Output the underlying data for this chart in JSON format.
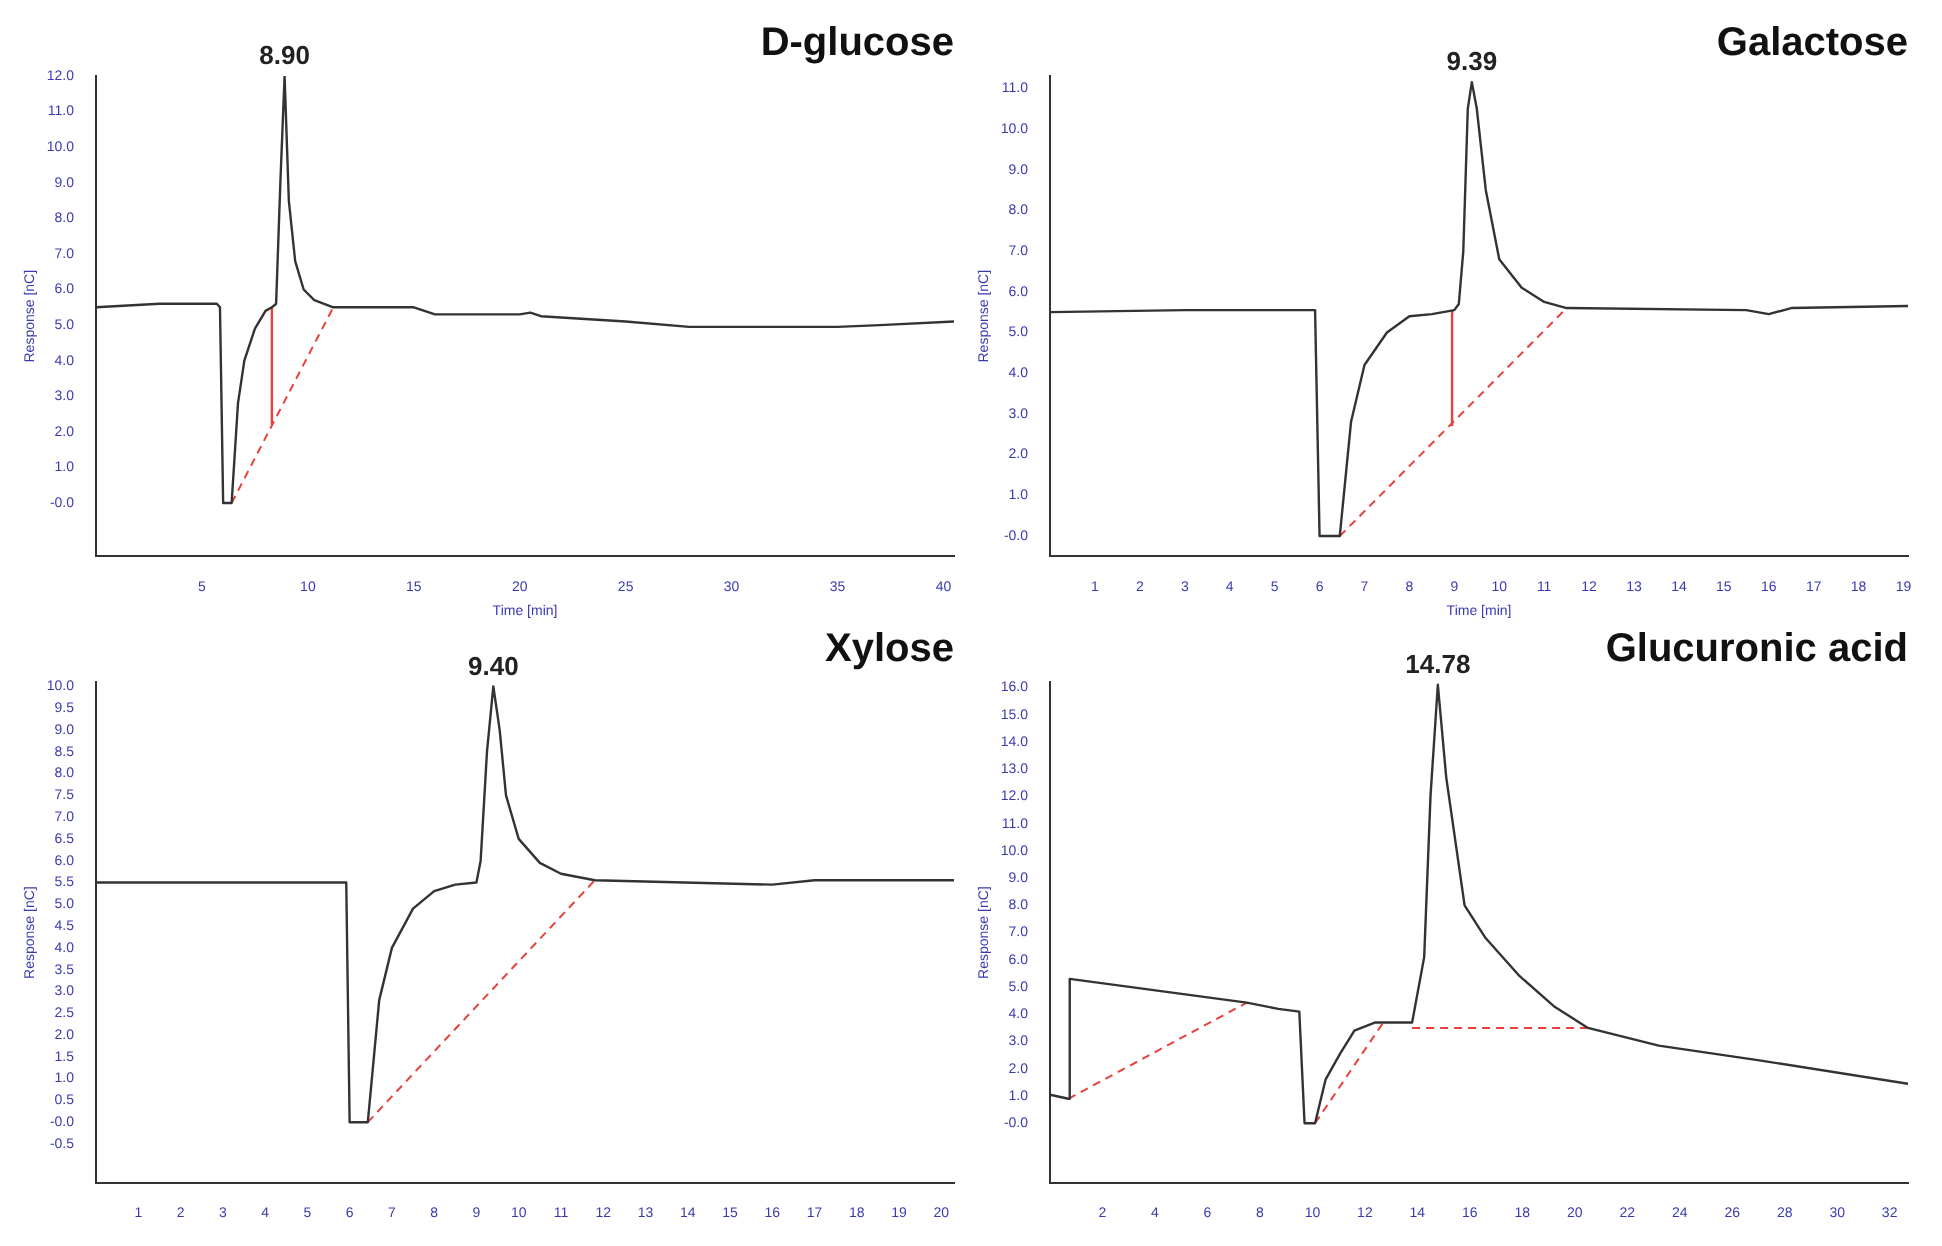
{
  "chart_data": [
    {
      "type": "line",
      "title": "D-glucose",
      "xlabel": "Time [min]",
      "ylabel": "Response [nC]",
      "legend": false,
      "grid": false,
      "marker": "none",
      "xlim": [
        0,
        40.5
      ],
      "ylim": [
        -1.5,
        12
      ],
      "xticks": [
        5,
        10,
        15,
        20,
        25,
        30,
        35,
        40
      ],
      "yticks": [
        {
          "value": 0,
          "label": "-0.0"
        },
        {
          "value": 1,
          "label": "1.0"
        },
        {
          "value": 2,
          "label": "2.0"
        },
        {
          "value": 3,
          "label": "3.0"
        },
        {
          "value": 4,
          "label": "4.0"
        },
        {
          "value": 5,
          "label": "5.0"
        },
        {
          "value": 6,
          "label": "6.0"
        },
        {
          "value": 7,
          "label": "7.0"
        },
        {
          "value": 8,
          "label": "8.0"
        },
        {
          "value": 9,
          "label": "9.0"
        },
        {
          "value": 10,
          "label": "10.0"
        },
        {
          "value": 11,
          "label": "11.0"
        },
        {
          "value": 12,
          "label": "12.0"
        }
      ],
      "annotations": [
        {
          "text": "8.90",
          "x": 8.9,
          "y": 12
        }
      ],
      "series": [
        {
          "color": "#333333",
          "line_style": "solid",
          "x": [
            0,
            3,
            5.7,
            5.85,
            6.0,
            6.4,
            6.7,
            7.0,
            7.5,
            8.0,
            8.3,
            8.5,
            8.7,
            8.9,
            9.1,
            9.4,
            9.8,
            10.3,
            11.2,
            15,
            16,
            20,
            20.5,
            21,
            25,
            28,
            32,
            35,
            37,
            40.5
          ],
          "values": [
            5.5,
            5.6,
            5.6,
            5.5,
            0,
            0,
            2.8,
            4.0,
            4.9,
            5.4,
            5.5,
            5.6,
            9,
            12,
            8.5,
            6.8,
            6.0,
            5.7,
            5.5,
            5.5,
            5.3,
            5.3,
            5.35,
            5.25,
            5.1,
            4.95,
            4.95,
            4.95,
            5.0,
            5.1
          ]
        },
        {
          "color": "#e8413c",
          "line_style": "dashed",
          "x": [
            6.4,
            11.2
          ],
          "values": [
            0,
            5.5
          ]
        },
        {
          "color": "#e8413c",
          "line_style": "solid",
          "x": [
            8.3,
            8.3
          ],
          "values": [
            2.2,
            5.5
          ]
        }
      ]
    },
    {
      "type": "line",
      "title": "Galactose",
      "xlabel": "Time [min]",
      "ylabel": "Response [nC]",
      "legend": false,
      "grid": false,
      "marker": "none",
      "xlim": [
        0,
        19.1
      ],
      "ylim": [
        -0.5,
        11.3
      ],
      "xticks": [
        1,
        2,
        3,
        4,
        5,
        6,
        7,
        8,
        9,
        10,
        11,
        12,
        13,
        14,
        15,
        16,
        17,
        18,
        19
      ],
      "yticks": [
        {
          "value": 0,
          "label": "-0.0"
        },
        {
          "value": 1,
          "label": "1.0"
        },
        {
          "value": 2,
          "label": "2.0"
        },
        {
          "value": 3,
          "label": "3.0"
        },
        {
          "value": 4,
          "label": "4.0"
        },
        {
          "value": 5,
          "label": "5.0"
        },
        {
          "value": 6,
          "label": "6.0"
        },
        {
          "value": 7,
          "label": "7.0"
        },
        {
          "value": 8,
          "label": "8.0"
        },
        {
          "value": 9,
          "label": "9.0"
        },
        {
          "value": 10,
          "label": "10.0"
        },
        {
          "value": 11,
          "label": "11.0"
        }
      ],
      "annotations": [
        {
          "text": "9.39",
          "x": 9.39,
          "y": 11.15
        }
      ],
      "series": [
        {
          "color": "#333333",
          "line_style": "solid",
          "x": [
            0,
            3,
            5.9,
            6.0,
            6.45,
            6.7,
            7.0,
            7.5,
            8.0,
            8.5,
            9.0,
            9.1,
            9.2,
            9.3,
            9.39,
            9.5,
            9.7,
            10.0,
            10.5,
            11.0,
            11.5,
            15.5,
            16,
            16.5,
            19.1
          ],
          "values": [
            5.5,
            5.55,
            5.55,
            0,
            0,
            2.8,
            4.2,
            5.0,
            5.4,
            5.45,
            5.55,
            5.7,
            7.0,
            10.5,
            11.15,
            10.5,
            8.5,
            6.8,
            6.1,
            5.75,
            5.6,
            5.55,
            5.45,
            5.6,
            5.65
          ]
        },
        {
          "color": "#e8413c",
          "line_style": "dashed",
          "x": [
            6.45,
            11.5
          ],
          "values": [
            0,
            5.6
          ]
        },
        {
          "color": "#e8413c",
          "line_style": "solid",
          "x": [
            8.95,
            8.95
          ],
          "values": [
            2.7,
            5.55
          ]
        }
      ]
    },
    {
      "type": "line",
      "title": "Xylose",
      "ylabel": "Response [nC]",
      "legend": false,
      "grid": false,
      "marker": "none",
      "xlim": [
        0,
        20.3
      ],
      "ylim": [
        -1.4,
        10.1
      ],
      "xticks": [
        1,
        2,
        3,
        4,
        5,
        6,
        7,
        8,
        9,
        10,
        11,
        12,
        13,
        14,
        15,
        16,
        17,
        18,
        19,
        20
      ],
      "yticks": [
        {
          "value": -0.5,
          "label": "-0.5"
        },
        {
          "value": 0,
          "label": "-0.0"
        },
        {
          "value": 0.5,
          "label": "0.5"
        },
        {
          "value": 1,
          "label": "1.0"
        },
        {
          "value": 1.5,
          "label": "1.5"
        },
        {
          "value": 2,
          "label": "2.0"
        },
        {
          "value": 2.5,
          "label": "2.5"
        },
        {
          "value": 3,
          "label": "3.0"
        },
        {
          "value": 3.5,
          "label": "3.5"
        },
        {
          "value": 4,
          "label": "4.0"
        },
        {
          "value": 4.5,
          "label": "4.5"
        },
        {
          "value": 5,
          "label": "5.0"
        },
        {
          "value": 5.5,
          "label": "5.5"
        },
        {
          "value": 6,
          "label": "6.0"
        },
        {
          "value": 6.5,
          "label": "6.5"
        },
        {
          "value": 7,
          "label": "7.0"
        },
        {
          "value": 7.5,
          "label": "7.5"
        },
        {
          "value": 8,
          "label": "8.0"
        },
        {
          "value": 8.5,
          "label": "8.5"
        },
        {
          "value": 9,
          "label": "9.0"
        },
        {
          "value": 9.5,
          "label": "9.5"
        },
        {
          "value": 10,
          "label": "10.0"
        }
      ],
      "annotations": [
        {
          "text": "9.40",
          "x": 9.4,
          "y": 10
        }
      ],
      "series": [
        {
          "color": "#333333",
          "line_style": "solid",
          "x": [
            0,
            3,
            5.92,
            6.0,
            6.43,
            6.7,
            7.0,
            7.5,
            8.0,
            8.5,
            9.0,
            9.1,
            9.25,
            9.4,
            9.55,
            9.7,
            10.0,
            10.5,
            11.0,
            11.8,
            16,
            17,
            20.3
          ],
          "values": [
            5.5,
            5.5,
            5.5,
            0,
            0,
            2.8,
            4.0,
            4.9,
            5.3,
            5.45,
            5.5,
            6.0,
            8.5,
            10.0,
            9.0,
            7.5,
            6.5,
            5.95,
            5.7,
            5.55,
            5.45,
            5.55,
            5.55
          ]
        },
        {
          "color": "#e8413c",
          "line_style": "dashed",
          "x": [
            6.43,
            11.8
          ],
          "values": [
            0,
            5.55
          ]
        }
      ]
    },
    {
      "type": "line",
      "title": "Glucuronic acid",
      "ylabel": "Response [nC]",
      "legend": false,
      "grid": false,
      "marker": "none",
      "xlim": [
        0,
        32.7
      ],
      "ylim": [
        -2.2,
        16.2
      ],
      "xticks": [
        2,
        4,
        6,
        8,
        10,
        12,
        14,
        16,
        18,
        20,
        22,
        24,
        26,
        28,
        30,
        32
      ],
      "yticks": [
        {
          "value": 0,
          "label": "-0.0"
        },
        {
          "value": 1,
          "label": "1.0"
        },
        {
          "value": 2,
          "label": "2.0"
        },
        {
          "value": 3,
          "label": "3.0"
        },
        {
          "value": 4,
          "label": "4.0"
        },
        {
          "value": 5,
          "label": "5.0"
        },
        {
          "value": 6,
          "label": "6.0"
        },
        {
          "value": 7,
          "label": "7.0"
        },
        {
          "value": 8,
          "label": "8.0"
        },
        {
          "value": 9,
          "label": "9.0"
        },
        {
          "value": 10,
          "label": "10.0"
        },
        {
          "value": 11,
          "label": "11.0"
        },
        {
          "value": 12,
          "label": "12.0"
        },
        {
          "value": 13,
          "label": "13.0"
        },
        {
          "value": 14,
          "label": "14.0"
        },
        {
          "value": 15,
          "label": "15.0"
        },
        {
          "value": 16,
          "label": "16.0"
        }
      ],
      "annotations": [
        {
          "text": "14.78",
          "x": 14.78,
          "y": 16.1
        }
      ],
      "series": [
        {
          "color": "#333333",
          "line_style": "solid",
          "x": [
            0,
            0.7,
            0.75,
            7.5,
            8.7,
            9.5,
            9.7,
            10.1,
            10.5,
            11.05,
            11.6,
            12.4,
            13.8,
            14.26,
            14.5,
            14.78,
            15.1,
            15.8,
            16.6,
            17.9,
            19.2,
            20.5,
            23.2,
            27.1,
            32.7
          ],
          "values": [
            1.05,
            0.9,
            5.3,
            4.43,
            4.2,
            4.1,
            0,
            0,
            1.6,
            2.55,
            3.4,
            3.7,
            3.7,
            6.1,
            12,
            16.1,
            12.7,
            8.0,
            6.8,
            5.4,
            4.3,
            3.5,
            2.85,
            2.3,
            1.45
          ]
        },
        {
          "color": "#e8413c",
          "line_style": "dashed",
          "x": [
            0.7,
            7.5
          ],
          "values": [
            0.9,
            4.43
          ]
        },
        {
          "color": "#e8413c",
          "line_style": "dashed",
          "x": [
            10.1,
            12.7
          ],
          "values": [
            0,
            3.7
          ]
        },
        {
          "color": "#e8413c",
          "line_style": "dashed",
          "x": [
            13.8,
            20.5
          ],
          "values": [
            3.5,
            3.5
          ]
        }
      ]
    }
  ]
}
